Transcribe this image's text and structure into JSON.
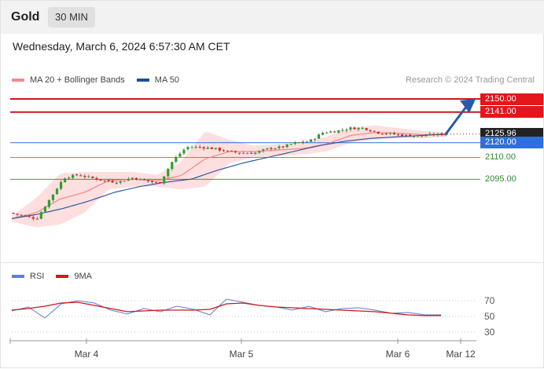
{
  "header": {
    "symbol": "Gold",
    "timeframe": "30 MIN"
  },
  "datetime": "Wednesday, March 6, 2024 6:57:30 AM CET",
  "legend": {
    "ma20": "MA 20 + Bollinger Bands",
    "ma50": "MA 50",
    "research": "Research © 2024 Trading Central"
  },
  "rsi_legend": {
    "rsi": "RSI",
    "ma9": "9MA"
  },
  "colors": {
    "up": "#2ca02c",
    "down": "#e0201c",
    "resistance": "#d0161b",
    "support": "#2e8b2e",
    "pivot": "#2f6fdb",
    "ma50": "#1f4e9c",
    "bollinger": "#fcd4d4",
    "arrow": "#2b5aa8",
    "current": "#222222"
  },
  "levels": {
    "r2": {
      "label": "2150.00",
      "value": 2150.0
    },
    "r1": {
      "label": "2141.00",
      "value": 2141.0
    },
    "current": {
      "label": "2125.96",
      "value": 2125.96
    },
    "pivot": {
      "label": "2120.00",
      "value": 2120.0
    },
    "s1": {
      "label": "2110.00",
      "value": 2110.0
    },
    "s2": {
      "label": "2095.00",
      "value": 2095.0
    }
  },
  "chart_data": [
    {
      "type": "candlestick",
      "title": "Gold",
      "timeframe": "30 MIN",
      "x_ticks": [
        "Mar 4",
        "Mar 5",
        "Mar 6",
        "Mar 12"
      ],
      "close_anchors": [
        2072,
        2070,
        2068,
        2082,
        2096,
        2098,
        2096,
        2094,
        2093,
        2096,
        2094,
        2092,
        2108,
        2117,
        2117,
        2116,
        2114,
        2113,
        2113,
        2116,
        2117,
        2120,
        2121,
        2127,
        2128,
        2130,
        2130,
        2127,
        2126,
        2125,
        2124.5,
        2125.5,
        2125.96
      ],
      "ma50_anchors": [
        2068,
        2071,
        2075,
        2080,
        2086,
        2090,
        2093,
        2095,
        2101,
        2106,
        2110,
        2114,
        2118,
        2121,
        2123,
        2124,
        2125,
        2125.96
      ],
      "bb_upper_anchors": [
        2070,
        2082,
        2099,
        2100,
        2100,
        2100,
        2098,
        2107,
        2128,
        2122,
        2118,
        2119,
        2120,
        2124,
        2130,
        2132,
        2130,
        2128,
        2127
      ],
      "bb_lower_anchors": [
        2066,
        2062,
        2064,
        2072,
        2088,
        2090,
        2090,
        2088,
        2090,
        2106,
        2110,
        2111,
        2112,
        2114,
        2120,
        2122,
        2123,
        2123,
        2124
      ],
      "ylim": [
        2060,
        2155
      ]
    },
    {
      "type": "line",
      "title": "RSI",
      "series": [
        {
          "name": "RSI",
          "values": [
            57,
            62,
            48,
            66,
            70,
            67,
            58,
            53,
            60,
            56,
            63,
            59,
            52,
            72,
            68,
            64,
            62,
            58,
            63,
            56,
            60,
            61,
            58,
            54,
            55,
            52,
            52
          ]
        },
        {
          "name": "9MA",
          "values": [
            58,
            60,
            63,
            67,
            68,
            64,
            60,
            56,
            57,
            58,
            58,
            58,
            59,
            66,
            67,
            64,
            62,
            61,
            60,
            59,
            58,
            57,
            56,
            54,
            52,
            51,
            51
          ]
        }
      ],
      "y_ticks": [
        70,
        50,
        30
      ],
      "ylim": [
        20,
        80
      ]
    }
  ]
}
